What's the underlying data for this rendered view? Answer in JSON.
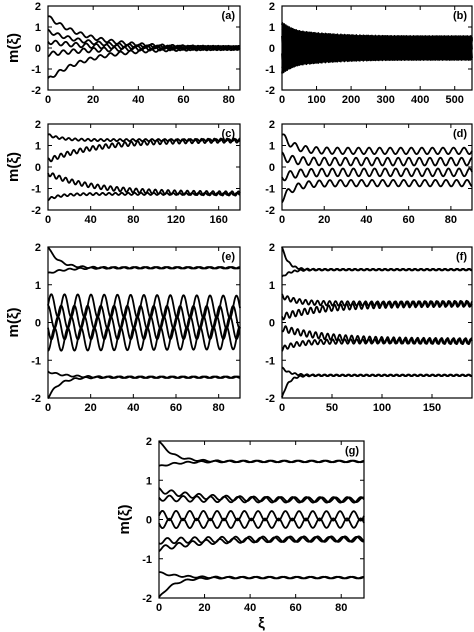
{
  "chart_data": [
    {
      "panel": "(a)",
      "type": "line",
      "ylabel": "m(ξ)",
      "xlabel": "",
      "xlim": [
        0,
        85
      ],
      "ylim": [
        -2,
        2
      ],
      "xticks": [
        0,
        20,
        40,
        60,
        80
      ],
      "yticks": [
        -2,
        -1,
        0,
        1,
        2
      ],
      "series": [
        {
          "kind": "oscillating",
          "start": 1.5,
          "end": 0.0,
          "tau": 18,
          "amp": 0.08,
          "period": 4.5,
          "phase": 0.0
        },
        {
          "kind": "oscillating",
          "start": 0.8,
          "end": 0.0,
          "tau": 18,
          "amp": 0.08,
          "period": 4.5,
          "phase": 1.6
        },
        {
          "kind": "oscillating",
          "start": 0.3,
          "end": 0.0,
          "tau": 18,
          "amp": 0.1,
          "period": 4.5,
          "phase": 3.1
        },
        {
          "kind": "oscillating",
          "start": -0.3,
          "end": 0.0,
          "tau": 18,
          "amp": 0.1,
          "period": 4.5,
          "phase": 4.7
        },
        {
          "kind": "oscillating",
          "start": -1.5,
          "end": 0.0,
          "tau": 18,
          "amp": 0.08,
          "period": 4.5,
          "phase": 0.8
        }
      ]
    },
    {
      "panel": "(b)",
      "type": "line",
      "ylabel": "",
      "xlabel": "",
      "xlim": [
        0,
        550
      ],
      "ylim": [
        -2,
        2
      ],
      "xticks": [
        0,
        100,
        200,
        300,
        400,
        500
      ],
      "yticks": [
        -2,
        -1,
        0,
        1,
        2
      ],
      "series": [
        {
          "kind": "oscillating",
          "start": 1.1,
          "end": 0.45,
          "tau": 50,
          "amp": 0.12,
          "period": 5,
          "phase": 0.0
        },
        {
          "kind": "oscillating",
          "start": 0.7,
          "end": 0.3,
          "tau": 120,
          "amp": 0.25,
          "period": 5,
          "phase": 1.0
        },
        {
          "kind": "oscillating",
          "start": 0.3,
          "end": 0.1,
          "tau": 200,
          "amp": 0.3,
          "period": 5,
          "phase": 2.0
        },
        {
          "kind": "oscillating",
          "start": -0.3,
          "end": -0.1,
          "tau": 200,
          "amp": 0.3,
          "period": 5,
          "phase": 3.0
        },
        {
          "kind": "oscillating",
          "start": -0.7,
          "end": -0.3,
          "tau": 120,
          "amp": 0.25,
          "period": 5,
          "phase": 4.0
        },
        {
          "kind": "oscillating",
          "start": -1.1,
          "end": -0.45,
          "tau": 50,
          "amp": 0.12,
          "period": 5,
          "phase": 5.0
        }
      ]
    },
    {
      "panel": "(c)",
      "type": "line",
      "ylabel": "m(ξ)",
      "xlabel": "",
      "xlim": [
        0,
        180
      ],
      "ylim": [
        -2,
        2
      ],
      "xticks": [
        0,
        40,
        80,
        120,
        160
      ],
      "yticks": [
        -2,
        -1,
        0,
        1,
        2
      ],
      "series": [
        {
          "kind": "oscillating",
          "start": 1.5,
          "end": 1.25,
          "tau": 12,
          "amp": 0.05,
          "period": 6,
          "phase": 0.0
        },
        {
          "kind": "oscillating",
          "start": 0.3,
          "end": 1.25,
          "tau": 45,
          "amp": 0.1,
          "period": 6,
          "phase": 1.5
        },
        {
          "kind": "oscillating",
          "start": -0.3,
          "end": -1.25,
          "tau": 45,
          "amp": 0.1,
          "period": 6,
          "phase": 3.0
        },
        {
          "kind": "oscillating",
          "start": -1.5,
          "end": -1.25,
          "tau": 12,
          "amp": 0.05,
          "period": 6,
          "phase": 4.5
        }
      ]
    },
    {
      "panel": "(d)",
      "type": "line",
      "ylabel": "",
      "xlabel": "",
      "xlim": [
        0,
        90
      ],
      "ylim": [
        -2,
        2
      ],
      "xticks": [
        0,
        20,
        40,
        60,
        80
      ],
      "yticks": [
        -2,
        -1,
        0,
        1,
        2
      ],
      "series": [
        {
          "kind": "oscillating",
          "start": 1.5,
          "end": 0.75,
          "tau": 5,
          "amp": 0.15,
          "period": 5,
          "phase": 0.0
        },
        {
          "kind": "oscillating",
          "start": 0.5,
          "end": 0.25,
          "tau": 5,
          "amp": 0.18,
          "period": 5,
          "phase": 1.5
        },
        {
          "kind": "oscillating",
          "start": -0.5,
          "end": -0.25,
          "tau": 5,
          "amp": 0.18,
          "period": 5,
          "phase": 3.0
        },
        {
          "kind": "oscillating",
          "start": -1.5,
          "end": -0.75,
          "tau": 5,
          "amp": 0.15,
          "period": 5,
          "phase": 4.5
        }
      ]
    },
    {
      "panel": "(e)",
      "type": "line",
      "ylabel": "m(ξ)",
      "xlabel": "",
      "xlim": [
        0,
        90
      ],
      "ylim": [
        -2,
        2
      ],
      "xticks": [
        0,
        20,
        40,
        60,
        80
      ],
      "yticks": [
        -2,
        -1,
        0,
        1,
        2
      ],
      "series": [
        {
          "kind": "oscillating",
          "start": 2.0,
          "end": 1.45,
          "tau": 5,
          "amp": 0.02,
          "period": 5,
          "phase": 0.0
        },
        {
          "kind": "oscillating",
          "start": 1.3,
          "end": 1.45,
          "tau": 8,
          "amp": 0.02,
          "period": 5,
          "phase": 1.5
        },
        {
          "kind": "oscillating",
          "start": 0.45,
          "end": 0.0,
          "tau": 1000,
          "amp": 0.3,
          "period": 6.2,
          "phase": 0.0
        },
        {
          "kind": "oscillating",
          "start": 0.15,
          "end": 0.0,
          "tau": 1000,
          "amp": 0.3,
          "period": 6.2,
          "phase": 1.6
        },
        {
          "kind": "oscillating",
          "start": -0.15,
          "end": 0.0,
          "tau": 1000,
          "amp": 0.3,
          "period": 6.2,
          "phase": 3.1
        },
        {
          "kind": "oscillating",
          "start": -0.45,
          "end": 0.0,
          "tau": 1000,
          "amp": 0.3,
          "period": 6.2,
          "phase": 4.7
        },
        {
          "kind": "oscillating",
          "start": -1.3,
          "end": -1.45,
          "tau": 8,
          "amp": 0.02,
          "period": 5,
          "phase": 3.0
        },
        {
          "kind": "oscillating",
          "start": -2.0,
          "end": -1.45,
          "tau": 5,
          "amp": 0.02,
          "period": 5,
          "phase": 4.5
        }
      ]
    },
    {
      "panel": "(f)",
      "type": "line",
      "ylabel": "",
      "xlabel": "",
      "xlim": [
        0,
        190
      ],
      "ylim": [
        -2,
        2
      ],
      "xticks": [
        0,
        50,
        100,
        150
      ],
      "yticks": [
        -2,
        -1,
        0,
        1,
        2
      ],
      "series": [
        {
          "kind": "oscillating",
          "start": 2.0,
          "end": 1.4,
          "tau": 6,
          "amp": 0.02,
          "period": 6,
          "phase": 0.0
        },
        {
          "kind": "oscillating",
          "start": 1.2,
          "end": 1.4,
          "tau": 8,
          "amp": 0.02,
          "period": 6,
          "phase": 1.0
        },
        {
          "kind": "oscillating",
          "start": 0.7,
          "end": 0.5,
          "tau": 15,
          "amp": 0.06,
          "period": 6,
          "phase": 2.0
        },
        {
          "kind": "oscillating",
          "start": 0.15,
          "end": 0.5,
          "tau": 45,
          "amp": 0.08,
          "period": 6,
          "phase": 3.0
        },
        {
          "kind": "oscillating",
          "start": -0.15,
          "end": -0.5,
          "tau": 45,
          "amp": 0.08,
          "period": 6,
          "phase": 4.0
        },
        {
          "kind": "oscillating",
          "start": -0.7,
          "end": -0.5,
          "tau": 15,
          "amp": 0.06,
          "period": 6,
          "phase": 5.0
        },
        {
          "kind": "oscillating",
          "start": -1.2,
          "end": -1.4,
          "tau": 8,
          "amp": 0.02,
          "period": 6,
          "phase": 0.5
        },
        {
          "kind": "oscillating",
          "start": -2.0,
          "end": -1.4,
          "tau": 6,
          "amp": 0.02,
          "period": 6,
          "phase": 1.5
        }
      ]
    },
    {
      "panel": "(g)",
      "type": "line",
      "ylabel": "m(ξ)",
      "xlabel": "ξ",
      "xlim": [
        0,
        90
      ],
      "ylim": [
        -2,
        2
      ],
      "xticks": [
        0,
        20,
        40,
        60,
        80
      ],
      "yticks": [
        -2,
        -1,
        0,
        1,
        2
      ],
      "series": [
        {
          "kind": "oscillating",
          "start": 2.0,
          "end": 1.48,
          "tau": 6,
          "amp": 0.02,
          "period": 6,
          "phase": 0.0
        },
        {
          "kind": "oscillating",
          "start": 1.35,
          "end": 1.48,
          "tau": 8,
          "amp": 0.02,
          "period": 6,
          "phase": 1.0
        },
        {
          "kind": "oscillating",
          "start": 0.75,
          "end": 0.5,
          "tau": 18,
          "amp": 0.06,
          "period": 6,
          "phase": 2.0
        },
        {
          "kind": "oscillating",
          "start": 0.55,
          "end": 0.5,
          "tau": 18,
          "amp": 0.07,
          "period": 6,
          "phase": 3.0
        },
        {
          "kind": "oscillating",
          "start": 0.1,
          "end": 0.0,
          "tau": 1000,
          "amp": 0.12,
          "period": 6,
          "phase": 0.0
        },
        {
          "kind": "oscillating",
          "start": -0.1,
          "end": 0.0,
          "tau": 1000,
          "amp": 0.12,
          "period": 6,
          "phase": 3.1
        },
        {
          "kind": "oscillating",
          "start": -0.55,
          "end": -0.5,
          "tau": 18,
          "amp": 0.07,
          "period": 6,
          "phase": 4.0
        },
        {
          "kind": "oscillating",
          "start": -0.75,
          "end": -0.5,
          "tau": 18,
          "amp": 0.06,
          "period": 6,
          "phase": 5.0
        },
        {
          "kind": "oscillating",
          "start": -1.35,
          "end": -1.48,
          "tau": 8,
          "amp": 0.02,
          "period": 6,
          "phase": 0.5
        },
        {
          "kind": "oscillating",
          "start": -2.0,
          "end": -1.48,
          "tau": 6,
          "amp": 0.02,
          "period": 6,
          "phase": 1.5
        }
      ]
    }
  ]
}
